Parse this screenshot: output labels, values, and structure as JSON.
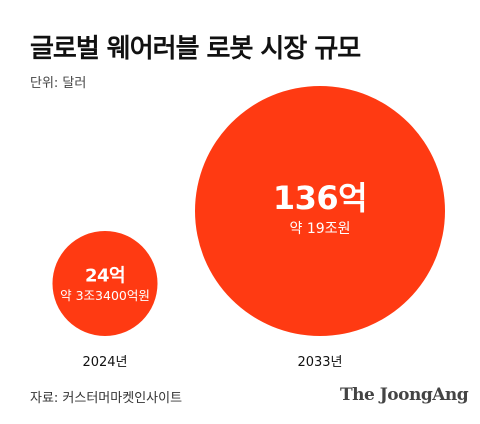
{
  "title": "글로벌 웨어러블 로봇 시장 규모",
  "unit": "단위: 달러",
  "source": "자료: 커스터머마켓인사이트",
  "brand": "The JoongAng",
  "colors": {
    "bubble": "#FF3A12",
    "text": "#111111",
    "bubble_text": "#FFFFFF"
  },
  "chart_data": {
    "type": "bubble",
    "unit": "달러",
    "categories": [
      "2024년",
      "2033년"
    ],
    "values": [
      2.4,
      13.6
    ],
    "data_labels": [
      "24억",
      "136억"
    ],
    "sub_labels": [
      "약 3조3400억원",
      "약 19조원"
    ]
  }
}
